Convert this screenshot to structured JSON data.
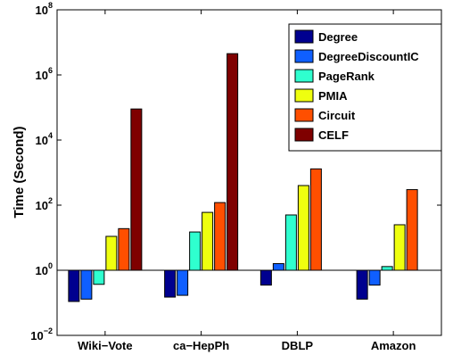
{
  "chart_data": {
    "type": "bar",
    "ylabel": "Time (Second)",
    "yscale": "log",
    "ylim": [
      0.01,
      100000000
    ],
    "yticks": [
      {
        "base": "10",
        "exp": "−2",
        "value": 0.01
      },
      {
        "base": "10",
        "exp": "0",
        "value": 1
      },
      {
        "base": "10",
        "exp": "2",
        "value": 100
      },
      {
        "base": "10",
        "exp": "4",
        "value": 10000
      },
      {
        "base": "10",
        "exp": "6",
        "value": 1000000
      },
      {
        "base": "10",
        "exp": "8",
        "value": 100000000
      }
    ],
    "bar_baseline": 1,
    "categories": [
      "Wiki−Vote",
      "ca−HepPh",
      "DBLP",
      "Amazon"
    ],
    "series": [
      {
        "name": "Degree",
        "color": "#00008f",
        "values": [
          0.11,
          0.15,
          0.35,
          0.13
        ]
      },
      {
        "name": "DegreeDiscountIC",
        "color": "#0f5fff",
        "values": [
          0.13,
          0.17,
          1.6,
          0.35
        ]
      },
      {
        "name": "PageRank",
        "color": "#2fffcf",
        "values": [
          0.37,
          15,
          50,
          1.3
        ]
      },
      {
        "name": "PMIA",
        "color": "#efff0f",
        "values": [
          11,
          60,
          400,
          25
        ]
      },
      {
        "name": "Circuit",
        "color": "#ff4f00",
        "values": [
          19,
          120,
          1300,
          300
        ]
      },
      {
        "name": "CELF",
        "color": "#7f0000",
        "values": [
          90000,
          4500000,
          null,
          null
        ]
      }
    ],
    "legend_position": "top-right",
    "grid": false
  }
}
